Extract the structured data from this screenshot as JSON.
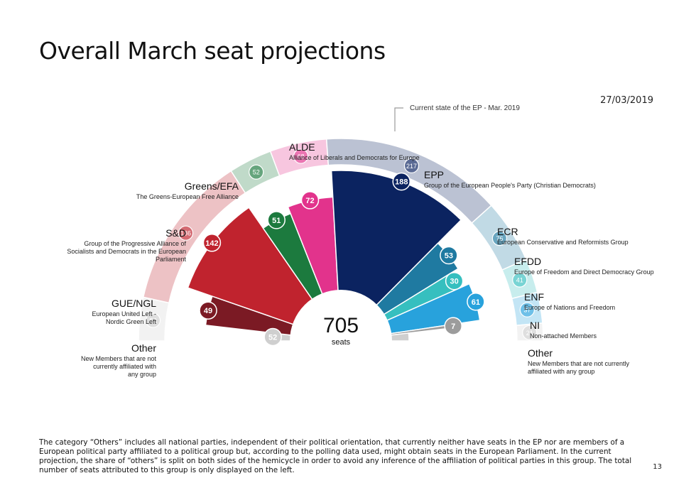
{
  "page": {
    "title": "Overall March seat projections",
    "date": "27/03/2019",
    "footnote": "The category “Others” includes all national parties, independent of their political orientation, that currently neither have seats in the EP nor are members of a European political party affiliated to a political group but, according to the polling data used, might obtain seats in the European Parliament. In the current projection, the share of “others” is split on both sides of the hemicycle in order to avoid any inference of the affiliation of political parties in this group. The total number of seats attributed to this group is only displayed on the left.",
    "page_number": "13"
  },
  "chart_data": {
    "type": "hemicycle",
    "total_seats": "705",
    "total_label": "seats",
    "current_state_label": "Current state of the EP - Mar. 2019",
    "groups": [
      {
        "abbr": "Other",
        "name": "New Members that are not currently affiliated with any group",
        "projected": 52,
        "current": 52,
        "color": "#cfcfcf",
        "side": "left"
      },
      {
        "abbr": "GUE/NGL",
        "name": "European United Left - Nordic Green Left",
        "projected": 49,
        "current": null,
        "color": "#7b1a24",
        "side": "left"
      },
      {
        "abbr": "S&D",
        "name": "Group of the Progressive Alliance of Socialists and Democrats in the European Parliament",
        "projected": 142,
        "current": 186,
        "color": "#c0232e",
        "side": "left"
      },
      {
        "abbr": "Greens/EFA",
        "name": "The Greens-European Free Alliance",
        "projected": 51,
        "current": 52,
        "color": "#1c7a3e",
        "side": "left"
      },
      {
        "abbr": "ALDE",
        "name": "Alliance of Liberals and Democrats for Europe",
        "projected": 72,
        "current": 68,
        "color": "#e2338c",
        "side": "top"
      },
      {
        "abbr": "EPP",
        "name": "Group of the European People's Party (Christian Democrats)",
        "projected": 188,
        "current": 217,
        "color": "#0b2360",
        "side": "right"
      },
      {
        "abbr": "ECR",
        "name": "European Conservative and Reformists Group",
        "projected": 53,
        "current": 76,
        "color": "#1f7aa1",
        "side": "right"
      },
      {
        "abbr": "EFDD",
        "name": "Europe of Freedom and Direct Democracy Group",
        "projected": 30,
        "current": 41,
        "color": "#36bfbf",
        "side": "right"
      },
      {
        "abbr": "ENF",
        "name": "Europe of Nations and Freedom",
        "projected": 61,
        "current": 37,
        "color": "#28a2dc",
        "side": "right"
      },
      {
        "abbr": "NI",
        "name": "Non-attached Members",
        "projected": 7,
        "current": null,
        "color": "#9c9c9c",
        "side": "right"
      },
      {
        "abbr": "Other",
        "name": "New Members that are not currently affiliated with any group",
        "projected": null,
        "current": 21,
        "color": "#cfcfcf",
        "side": "right"
      }
    ]
  }
}
